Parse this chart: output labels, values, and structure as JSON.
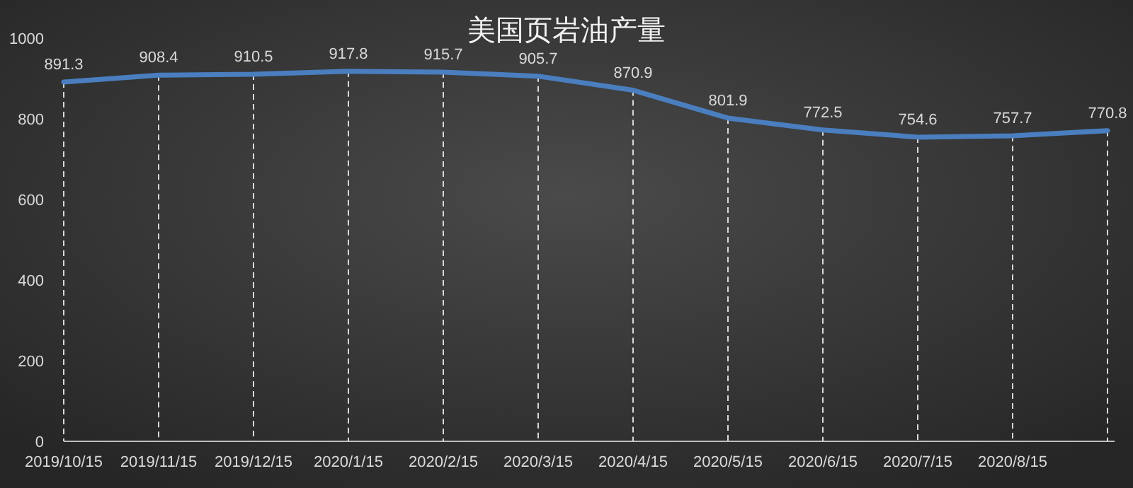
{
  "chart_data": {
    "type": "line",
    "title": "美国页岩油产量",
    "categories": [
      "2019/10/15",
      "2019/11/15",
      "2019/12/15",
      "2020/1/15",
      "2020/2/15",
      "2020/3/15",
      "2020/4/15",
      "2020/5/15",
      "2020/6/15",
      "2020/7/15",
      "2020/8/15",
      null
    ],
    "series": [
      {
        "color": "#4a7ebf",
        "values": [
          891.3,
          908.4,
          910.5,
          917.8,
          915.7,
          905.7,
          870.9,
          801.9,
          772.5,
          754.6,
          757.7,
          770.8
        ]
      }
    ],
    "ylim": [
      0,
      1000
    ],
    "yticks": [
      0,
      200,
      400,
      600,
      800,
      1000
    ],
    "data_labels": true,
    "grid": "x",
    "marker": "none",
    "line_style": "solid"
  }
}
